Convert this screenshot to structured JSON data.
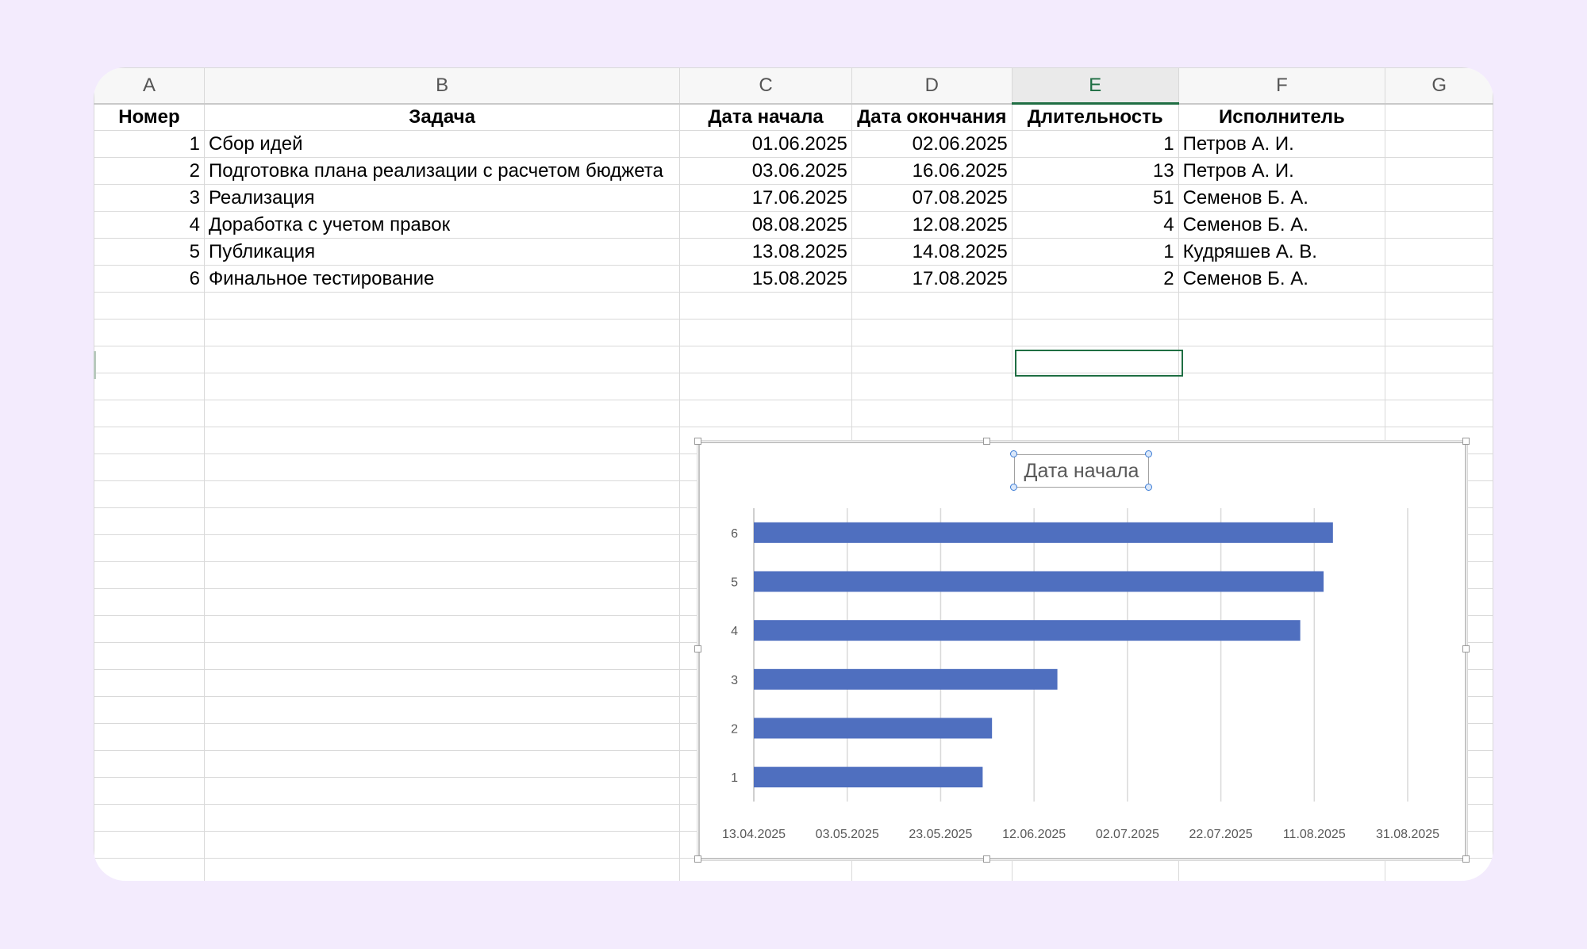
{
  "spreadsheet": {
    "column_headers": [
      "A",
      "B",
      "C",
      "D",
      "E",
      "F",
      "G"
    ],
    "selected_column": "E",
    "header_row": [
      "Номер",
      "Задача",
      "Дата начала",
      "Дата окончания",
      "Длительность",
      "Исполнитель",
      ""
    ],
    "rows": [
      [
        "1",
        "Сбор идей",
        "01.06.2025",
        "02.06.2025",
        "1",
        "Петров А. И."
      ],
      [
        "2",
        "Подготовка плана реализации с расчетом бюджета",
        "03.06.2025",
        "16.06.2025",
        "13",
        "Петров А. И."
      ],
      [
        "3",
        "Реализация",
        "17.06.2025",
        "07.08.2025",
        "51",
        "Семенов Б. А."
      ],
      [
        "4",
        "Доработка с учетом правок",
        "08.08.2025",
        "12.08.2025",
        "4",
        "Семенов Б. А."
      ],
      [
        "5",
        "Публикация",
        "13.08.2025",
        "14.08.2025",
        "1",
        "Кудряшев А. В."
      ],
      [
        "6",
        "Финальное тестирование",
        "15.08.2025",
        "17.08.2025",
        "2",
        "Семенов Б. А."
      ]
    ]
  },
  "chart_data": {
    "type": "bar",
    "orientation": "horizontal",
    "title": "Дата начала",
    "categories": [
      "1",
      "2",
      "3",
      "4",
      "5",
      "6"
    ],
    "series": [
      {
        "values": [
          "01.06.2025",
          "03.06.2025",
          "17.06.2025",
          "08.08.2025",
          "13.08.2025",
          "15.08.2025"
        ]
      }
    ],
    "x_ticks": [
      "13.04.2025",
      "03.05.2025",
      "23.05.2025",
      "12.06.2025",
      "02.07.2025",
      "22.07.2025",
      "11.08.2025",
      "31.08.2025"
    ],
    "xlim": [
      "13.04.2025",
      "31.08.2025"
    ],
    "grid": "vertical",
    "legend": "none",
    "colors": {
      "bar": "#4f6fbf",
      "grid": "#d9d9d9",
      "axis_text": "#595959"
    }
  }
}
